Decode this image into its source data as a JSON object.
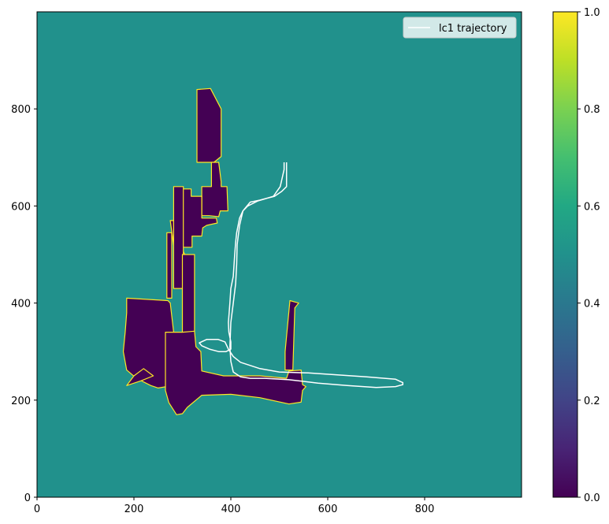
{
  "chart_data": {
    "type": "heatmap",
    "title": "",
    "xlabel": "",
    "ylabel": "",
    "xlim": [
      0,
      1000
    ],
    "ylim": [
      0,
      1000
    ],
    "x_ticks": [
      0,
      200,
      400,
      600,
      800
    ],
    "y_ticks": [
      0,
      200,
      400,
      600,
      800
    ],
    "colormap": "viridis",
    "colorbar": {
      "range": [
        0,
        1
      ],
      "ticks": [
        "0.0",
        "0.2",
        "0.4",
        "0.6",
        "0.8",
        "1.0"
      ]
    },
    "background_value": 0.5,
    "colors": {
      "unknown": "#21918c",
      "free": "#440154",
      "occupied": "#fde725",
      "trajectory": "#ffffff"
    },
    "legend": {
      "position": "top-right",
      "entries": [
        {
          "label": "lc1 trajectory",
          "color": "#ffffff"
        }
      ]
    },
    "free_regions": [
      [
        [
          330,
          840
        ],
        [
          358,
          842
        ],
        [
          380,
          800
        ],
        [
          380,
          702
        ],
        [
          365,
          690
        ],
        [
          355,
          690
        ],
        [
          355,
          690
        ],
        [
          330,
          690
        ]
      ],
      [
        [
          360,
          690
        ],
        [
          375,
          690
        ],
        [
          380,
          650
        ],
        [
          380,
          640
        ],
        [
          392,
          640
        ],
        [
          394,
          590
        ],
        [
          378,
          590
        ],
        [
          375,
          578
        ],
        [
          355,
          580
        ],
        [
          340,
          580
        ],
        [
          340,
          640
        ],
        [
          360,
          640
        ]
      ],
      [
        [
          285,
          635
        ],
        [
          318,
          635
        ],
        [
          318,
          620
        ],
        [
          340,
          620
        ],
        [
          340,
          575
        ],
        [
          370,
          575
        ],
        [
          372,
          565
        ],
        [
          350,
          560
        ],
        [
          342,
          555
        ],
        [
          340,
          538
        ],
        [
          320,
          538
        ],
        [
          320,
          515
        ],
        [
          300,
          515
        ],
        [
          300,
          500
        ],
        [
          285,
          500
        ]
      ],
      [
        [
          275,
          570
        ],
        [
          292,
          570
        ],
        [
          300,
          510
        ],
        [
          305,
          500
        ],
        [
          290,
          500
        ],
        [
          282,
          520
        ]
      ],
      [
        [
          268,
          545
        ],
        [
          278,
          545
        ],
        [
          278,
          410
        ],
        [
          268,
          410
        ]
      ],
      [
        [
          282,
          430
        ],
        [
          302,
          430
        ],
        [
          302,
          640
        ],
        [
          282,
          640
        ]
      ],
      [
        [
          300,
          500
        ],
        [
          325,
          500
        ],
        [
          325,
          340
        ],
        [
          300,
          340
        ]
      ],
      [
        [
          185,
          410
        ],
        [
          270,
          405
        ],
        [
          275,
          400
        ],
        [
          282,
          340
        ],
        [
          280,
          230
        ],
        [
          250,
          225
        ],
        [
          235,
          230
        ],
        [
          205,
          245
        ],
        [
          185,
          262
        ],
        [
          178,
          300
        ],
        [
          182,
          340
        ],
        [
          185,
          380
        ]
      ],
      [
        [
          185,
          230
        ],
        [
          215,
          240
        ],
        [
          240,
          250
        ],
        [
          220,
          265
        ],
        [
          200,
          250
        ]
      ],
      [
        [
          265,
          340
        ],
        [
          300,
          340
        ],
        [
          325,
          342
        ],
        [
          328,
          310
        ],
        [
          338,
          300
        ],
        [
          340,
          260
        ],
        [
          385,
          250
        ],
        [
          460,
          250
        ],
        [
          515,
          245
        ],
        [
          520,
          260
        ],
        [
          545,
          262
        ],
        [
          548,
          232
        ],
        [
          555,
          228
        ],
        [
          548,
          220
        ],
        [
          545,
          196
        ],
        [
          520,
          192
        ],
        [
          460,
          205
        ],
        [
          400,
          212
        ],
        [
          340,
          210
        ],
        [
          310,
          185
        ],
        [
          300,
          172
        ],
        [
          288,
          170
        ],
        [
          272,
          195
        ],
        [
          265,
          220
        ]
      ],
      [
        [
          512,
          262
        ],
        [
          528,
          262
        ],
        [
          532,
          390
        ],
        [
          540,
          400
        ],
        [
          522,
          405
        ],
        [
          512,
          300
        ]
      ]
    ],
    "trajectory": {
      "x": [
        510,
        510,
        502,
        488,
        455,
        435,
        425,
        418,
        412,
        410,
        408,
        405,
        400,
        398,
        395,
        396,
        400,
        400,
        390,
        375,
        356,
        340,
        335,
        350,
        374,
        388,
        395,
        405,
        420,
        460,
        500,
        560,
        620,
        680,
        740,
        755,
        755,
        740,
        700,
        640,
        580,
        520,
        470,
        440,
        420,
        405,
        400,
        398,
        400,
        405,
        410,
        412,
        413,
        418,
        425,
        440,
        460,
        475,
        490,
        505,
        515,
        515
      ],
      "y": [
        690,
        675,
        640,
        620,
        610,
        600,
        590,
        575,
        545,
        525,
        500,
        455,
        430,
        400,
        360,
        340,
        320,
        305,
        300,
        300,
        305,
        312,
        318,
        325,
        325,
        320,
        305,
        290,
        278,
        265,
        258,
        256,
        252,
        248,
        243,
        236,
        232,
        228,
        226,
        230,
        235,
        242,
        245,
        245,
        248,
        258,
        280,
        310,
        360,
        400,
        440,
        480,
        520,
        560,
        590,
        608,
        612,
        616,
        620,
        630,
        640,
        690
      ]
    }
  }
}
